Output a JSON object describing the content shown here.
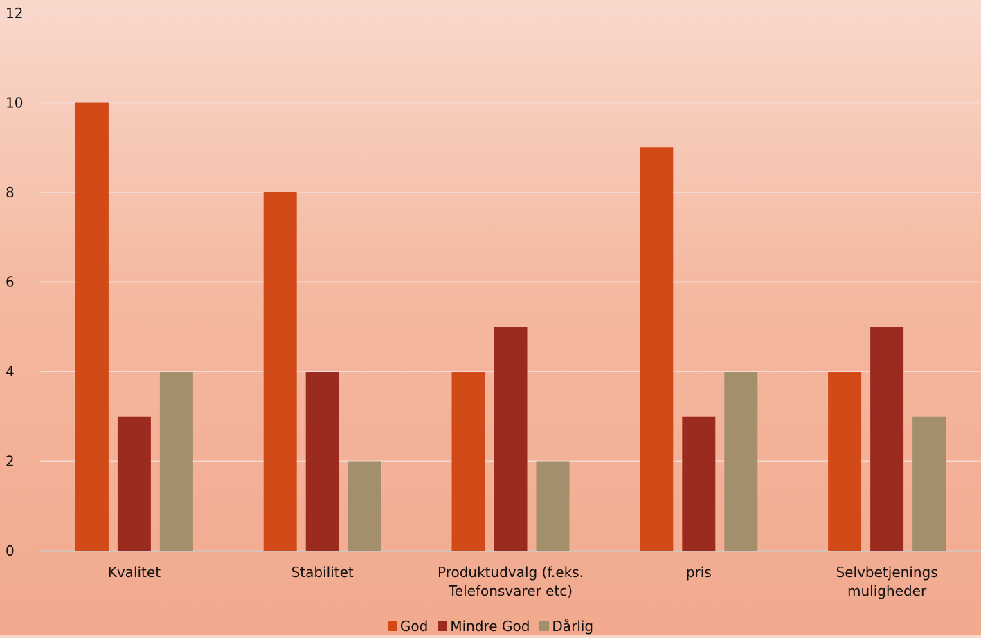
{
  "chart_data": {
    "type": "bar",
    "title": "",
    "xlabel": "",
    "ylabel": "",
    "ylim": [
      0,
      12
    ],
    "yticks": [
      0,
      2,
      4,
      6,
      8,
      10,
      12
    ],
    "grid": true,
    "legend_position": "bottom",
    "categories": [
      [
        "Kvalitet"
      ],
      [
        "Stabilitet"
      ],
      [
        "Produktudvalg (f.eks.",
        "Telefonsvarer etc)"
      ],
      [
        "pris"
      ],
      [
        "Selvbetjenings",
        "muligheder"
      ]
    ],
    "series": [
      {
        "name": "God",
        "color": "#d24a18",
        "values": [
          10,
          8,
          4,
          9,
          4
        ]
      },
      {
        "name": "Mindre God",
        "color": "#9c2b1f",
        "values": [
          3,
          4,
          5,
          3,
          5
        ]
      },
      {
        "name": "Dårlig",
        "color": "#a38f6c",
        "values": [
          4,
          2,
          2,
          4,
          3
        ]
      }
    ]
  }
}
